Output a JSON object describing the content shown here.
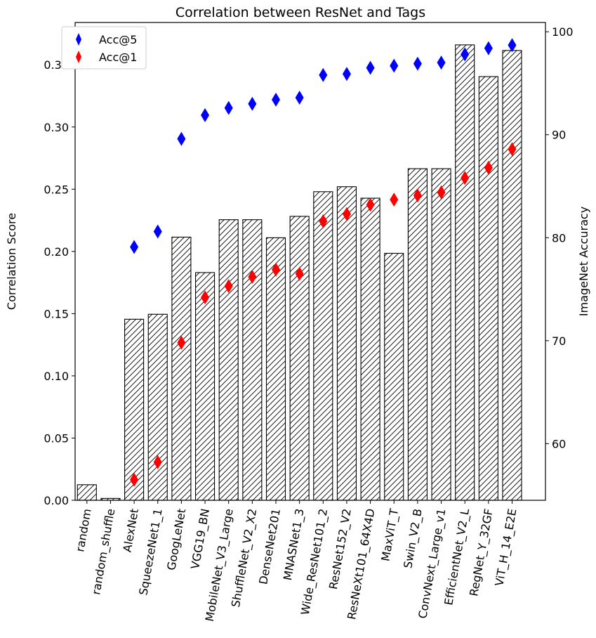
{
  "chart_data": {
    "type": "bar",
    "title": "Correlation between ResNet and Tags",
    "ylabel": "Correlation Score",
    "y2label": "ImageNet Accuracy",
    "ylim": [
      0,
      0.384
    ],
    "y2lim": [
      54.5,
      100.9
    ],
    "yticks": [
      "0.00",
      "0.05",
      "0.10",
      "0.15",
      "0.20",
      "0.25",
      "0.30",
      "0.35"
    ],
    "y2ticks": [
      "60",
      "70",
      "80",
      "90",
      "100"
    ],
    "categories": [
      "random",
      "random_shuffle",
      "AlexNet",
      "SqueezeNet1_1",
      "GoogLeNet",
      "VGG19_BN",
      "MobileNet_V3_Large",
      "ShuffleNet_V2_X2",
      "DenseNet201",
      "MNASNet1_3",
      "Wide_ResNet101_2",
      "ResNet152_V2",
      "ResNeXt101_64X4D",
      "MaxViT_T",
      "Swin_V2_B",
      "ConvNext_Large_v1",
      "EfficientNet_V2_L",
      "RegNet_Y_32GF",
      "ViT_H_14_E2E"
    ],
    "values": [
      0.0125,
      0.0015,
      0.1455,
      0.1495,
      0.2115,
      0.183,
      0.2255,
      0.2255,
      0.211,
      0.2282,
      0.248,
      0.252,
      0.2428,
      0.1985,
      0.2665,
      0.2665,
      0.366,
      0.3405,
      0.3615
    ],
    "series": [
      {
        "name": "Acc@5",
        "color": "#0000ff",
        "marker": "thin-diamond",
        "values": [
          null,
          null,
          79.1,
          80.6,
          89.6,
          91.9,
          92.6,
          93.0,
          93.4,
          93.6,
          95.8,
          95.9,
          96.5,
          96.7,
          96.9,
          97.0,
          97.8,
          98.4,
          98.7
        ]
      },
      {
        "name": "Acc@1",
        "color": "#ff0000",
        "marker": "thin-diamond",
        "values": [
          null,
          null,
          56.5,
          58.2,
          69.8,
          74.2,
          75.3,
          76.2,
          76.9,
          76.5,
          81.6,
          82.3,
          83.2,
          83.7,
          84.1,
          84.4,
          85.8,
          86.8,
          88.6
        ]
      }
    ],
    "bar_fill": "hatched",
    "legend_position": "top-left",
    "grid": false
  }
}
